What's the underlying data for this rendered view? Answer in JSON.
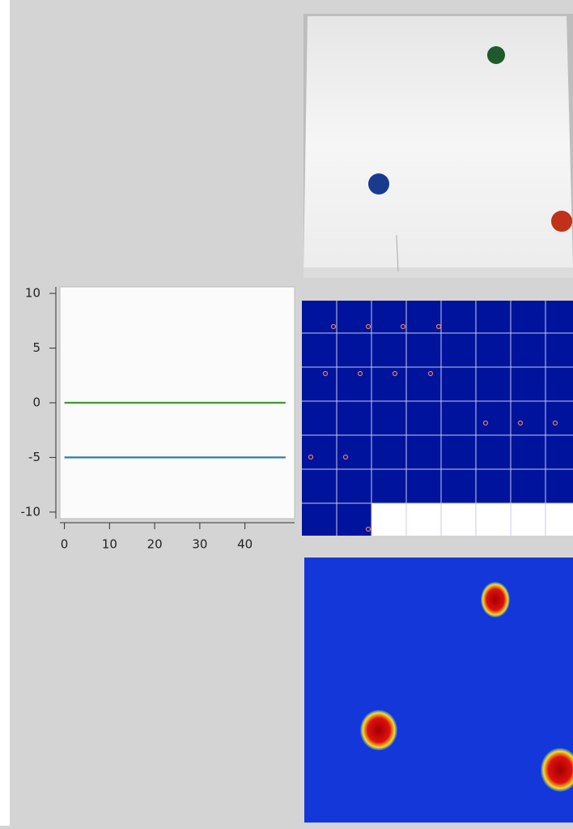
{
  "chart_data": {
    "type": "line",
    "x": [
      0,
      49
    ],
    "series": [
      {
        "color": "#3c9a2c",
        "values": [
          0,
          0
        ]
      },
      {
        "color": "#1d7c98",
        "values": [
          -5,
          -5
        ]
      }
    ],
    "xlim": [
      -1,
      51
    ],
    "xticks": [
      0,
      10,
      20,
      30,
      40
    ],
    "ylim": [
      -10.6,
      10.6
    ],
    "yticks": [
      -10,
      -5,
      0,
      5,
      10
    ]
  }
}
